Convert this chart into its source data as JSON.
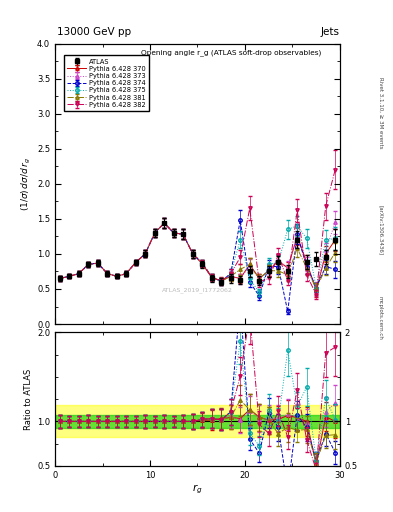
{
  "title_top": "13000 GeV pp",
  "title_right": "Jets",
  "ylabel_main": "(1/σ) dσ/d r_g",
  "ylabel_ratio": "Ratio to ATLAS",
  "xlabel": "r_g",
  "plot_title": "Opening angle r_g (ATLAS soft-drop observables)",
  "watermark": "ATLAS_2019_I1772062",
  "rivet_text": "Rivet 3.1.10, ≥ 3M events",
  "arxiv_text": "[arXiv:1306.3436]",
  "mcplots_text": "mcplots.cern.ch",
  "ylim_main": [
    0,
    4
  ],
  "ylim_ratio": [
    0.5,
    2
  ],
  "xlim": [
    0,
    30
  ],
  "x_data": [
    0.5,
    1.5,
    2.5,
    3.5,
    4.5,
    5.5,
    6.5,
    7.5,
    8.5,
    9.5,
    10.5,
    11.5,
    12.5,
    13.5,
    14.5,
    15.5,
    16.5,
    17.5,
    18.5,
    19.5,
    20.5,
    21.5,
    22.5,
    23.5,
    24.5,
    25.5,
    26.5,
    27.5,
    28.5,
    29.5
  ],
  "atlas_y": [
    0.65,
    0.68,
    0.72,
    0.85,
    0.87,
    0.72,
    0.68,
    0.72,
    0.88,
    1.0,
    1.3,
    1.44,
    1.3,
    1.28,
    1.0,
    0.85,
    0.65,
    0.6,
    0.65,
    0.63,
    0.75,
    0.62,
    0.75,
    0.88,
    0.75,
    1.2,
    0.88,
    0.93,
    0.95,
    1.2
  ],
  "atlas_yerr": [
    0.04,
    0.03,
    0.03,
    0.04,
    0.04,
    0.03,
    0.03,
    0.03,
    0.04,
    0.05,
    0.06,
    0.07,
    0.06,
    0.07,
    0.06,
    0.05,
    0.05,
    0.05,
    0.06,
    0.06,
    0.08,
    0.06,
    0.08,
    0.09,
    0.09,
    0.12,
    0.1,
    0.1,
    0.1,
    0.15
  ],
  "py370_y": [
    0.65,
    0.68,
    0.72,
    0.85,
    0.87,
    0.72,
    0.68,
    0.72,
    0.88,
    1.0,
    1.3,
    1.44,
    1.3,
    1.28,
    1.0,
    0.86,
    0.66,
    0.62,
    0.68,
    0.65,
    0.85,
    0.65,
    0.76,
    0.9,
    0.8,
    1.25,
    0.88,
    0.48,
    1.0,
    1.2
  ],
  "py373_y": [
    0.65,
    0.68,
    0.72,
    0.85,
    0.87,
    0.72,
    0.68,
    0.72,
    0.88,
    1.0,
    1.3,
    1.44,
    1.3,
    1.28,
    1.0,
    0.87,
    0.67,
    0.61,
    0.69,
    0.64,
    0.84,
    0.64,
    0.77,
    0.91,
    0.81,
    1.26,
    0.86,
    0.5,
    1.05,
    1.45
  ],
  "py374_y": [
    0.65,
    0.68,
    0.72,
    0.85,
    0.87,
    0.72,
    0.68,
    0.72,
    0.88,
    1.0,
    1.3,
    1.44,
    1.3,
    1.28,
    1.0,
    0.87,
    0.67,
    0.61,
    0.72,
    1.48,
    0.6,
    0.4,
    0.82,
    0.82,
    0.18,
    1.28,
    0.82,
    0.52,
    0.82,
    0.78
  ],
  "py375_y": [
    0.65,
    0.68,
    0.72,
    0.85,
    0.87,
    0.72,
    0.68,
    0.72,
    0.88,
    1.0,
    1.3,
    1.44,
    1.3,
    1.28,
    1.0,
    0.87,
    0.67,
    0.61,
    0.72,
    1.2,
    0.65,
    0.45,
    0.85,
    0.88,
    1.35,
    1.4,
    1.22,
    0.52,
    1.2,
    1.22
  ],
  "py381_y": [
    0.65,
    0.68,
    0.72,
    0.85,
    0.87,
    0.72,
    0.68,
    0.72,
    0.88,
    1.0,
    1.3,
    1.44,
    1.3,
    1.28,
    1.0,
    0.87,
    0.67,
    0.61,
    0.68,
    0.78,
    0.85,
    0.65,
    0.76,
    0.76,
    0.7,
    1.08,
    0.8,
    0.5,
    0.8,
    1.02
  ],
  "py382_y": [
    0.65,
    0.68,
    0.72,
    0.85,
    0.87,
    0.72,
    0.68,
    0.72,
    0.88,
    1.0,
    1.3,
    1.44,
    1.3,
    1.28,
    1.0,
    0.87,
    0.67,
    0.61,
    0.72,
    0.95,
    1.65,
    0.6,
    0.65,
    0.98,
    0.62,
    1.62,
    0.7,
    0.42,
    1.68,
    2.2
  ],
  "py370_yerr": [
    0.03,
    0.03,
    0.03,
    0.04,
    0.04,
    0.03,
    0.03,
    0.03,
    0.04,
    0.05,
    0.06,
    0.07,
    0.06,
    0.07,
    0.06,
    0.05,
    0.05,
    0.05,
    0.06,
    0.07,
    0.09,
    0.07,
    0.08,
    0.09,
    0.09,
    0.12,
    0.1,
    0.1,
    0.11,
    0.16
  ],
  "py373_yerr": [
    0.03,
    0.03,
    0.03,
    0.04,
    0.04,
    0.03,
    0.03,
    0.03,
    0.04,
    0.05,
    0.06,
    0.07,
    0.06,
    0.07,
    0.06,
    0.05,
    0.05,
    0.05,
    0.06,
    0.07,
    0.09,
    0.07,
    0.08,
    0.09,
    0.09,
    0.12,
    0.1,
    0.1,
    0.11,
    0.16
  ],
  "py374_yerr": [
    0.03,
    0.03,
    0.03,
    0.04,
    0.04,
    0.03,
    0.03,
    0.03,
    0.04,
    0.05,
    0.06,
    0.07,
    0.06,
    0.07,
    0.06,
    0.05,
    0.05,
    0.05,
    0.07,
    0.15,
    0.07,
    0.05,
    0.09,
    0.1,
    0.04,
    0.14,
    0.1,
    0.07,
    0.1,
    0.12
  ],
  "py375_yerr": [
    0.03,
    0.03,
    0.03,
    0.04,
    0.04,
    0.03,
    0.03,
    0.03,
    0.04,
    0.05,
    0.06,
    0.07,
    0.06,
    0.07,
    0.06,
    0.05,
    0.05,
    0.05,
    0.07,
    0.12,
    0.07,
    0.05,
    0.09,
    0.1,
    0.14,
    0.14,
    0.13,
    0.07,
    0.14,
    0.16
  ],
  "py381_yerr": [
    0.03,
    0.03,
    0.03,
    0.04,
    0.04,
    0.03,
    0.03,
    0.03,
    0.04,
    0.05,
    0.06,
    0.07,
    0.06,
    0.07,
    0.06,
    0.05,
    0.05,
    0.05,
    0.06,
    0.08,
    0.09,
    0.07,
    0.08,
    0.09,
    0.09,
    0.12,
    0.1,
    0.08,
    0.1,
    0.14
  ],
  "py382_yerr": [
    0.03,
    0.03,
    0.03,
    0.04,
    0.04,
    0.03,
    0.03,
    0.03,
    0.04,
    0.05,
    0.06,
    0.07,
    0.06,
    0.07,
    0.06,
    0.05,
    0.05,
    0.05,
    0.07,
    0.1,
    0.17,
    0.07,
    0.08,
    0.11,
    0.07,
    0.17,
    0.09,
    0.06,
    0.19,
    0.28
  ],
  "colors": {
    "py370": "#cc0000",
    "py373": "#cc44cc",
    "py374": "#0000cc",
    "py375": "#00aaaa",
    "py381": "#887700",
    "py382": "#cc0055"
  },
  "band_yellow_lo": 0.82,
  "band_yellow_hi": 1.18,
  "band_green_lo": 0.93,
  "band_green_hi": 1.07
}
